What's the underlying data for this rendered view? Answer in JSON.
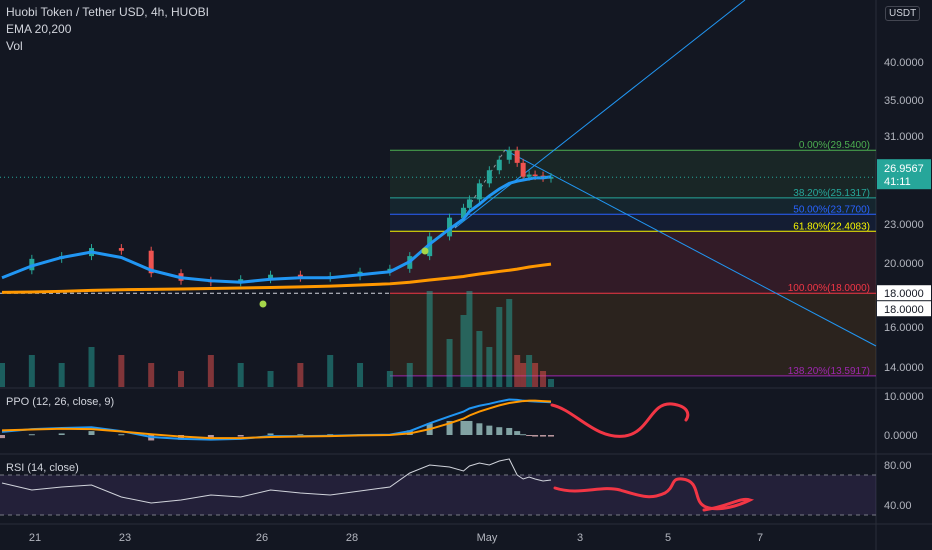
{
  "legend": {
    "title": "Huobi Token / Tether USD, 4h, HUOBI",
    "ema": "EMA 20,200",
    "vol": "Vol"
  },
  "currency_button": "USDT",
  "chart_data": [
    {
      "type": "line",
      "title": "Huobi Token / Tether USD, 4h, HUOBI",
      "series": [
        {
          "name": "EMA 20,200",
          "ohlc_summary": "candlestick price",
          "x": [
            0,
            15,
            30,
            45,
            60,
            75,
            90,
            105,
            120,
            135,
            150,
            165,
            180,
            195,
            205,
            215,
            225,
            232,
            235,
            240,
            245,
            250,
            255,
            259,
            262,
            265,
            268,
            272,
            276
          ],
          "values": [
            19.5,
            20.3,
            20.5,
            21.1,
            20.9,
            19.3,
            18.8,
            18.7,
            18.9,
            19.2,
            19.0,
            19.1,
            19.4,
            19.6,
            20.5,
            22.0,
            23.5,
            24.3,
            25.0,
            26.4,
            27.6,
            28.6,
            29.5,
            28.3,
            27.0,
            27.2,
            27.1,
            26.9,
            26.96
          ]
        }
      ],
      "ema_fast_values": [
        19.0,
        19.8,
        20.4,
        20.8,
        20.4,
        19.5,
        19.0,
        18.8,
        18.7,
        18.9,
        19.0,
        19.0,
        19.2,
        19.4,
        20.1,
        21.4,
        22.6,
        23.4,
        24.0,
        24.6,
        25.3,
        25.9,
        26.4,
        26.6,
        26.7,
        26.8,
        26.9,
        26.9,
        27.0
      ],
      "ema_slow_values": [
        18.05,
        18.08,
        18.12,
        18.18,
        18.22,
        18.24,
        18.27,
        18.3,
        18.33,
        18.36,
        18.4,
        18.45,
        18.52,
        18.6,
        18.7,
        18.85,
        18.98,
        19.08,
        19.15,
        19.25,
        19.33,
        19.42,
        19.5,
        19.58,
        19.65,
        19.72,
        19.78,
        19.85,
        19.92
      ],
      "volume": [
        3,
        4,
        3,
        5,
        4,
        3,
        2,
        4,
        3,
        2,
        3,
        4,
        3,
        2,
        3,
        12,
        6,
        9,
        12,
        7,
        5,
        10,
        11,
        4,
        3,
        4,
        3,
        2,
        1
      ],
      "yaxis_ticks": [
        "40.0000",
        "35.0000",
        "31.0000",
        "23.0000",
        "20.0000",
        "16.0000",
        "14.0000"
      ],
      "price_tags": {
        "last": "26.9567",
        "countdown": "41:11",
        "level_a": "18.0000",
        "level_b": "18.0000"
      },
      "fib_levels": [
        {
          "label": "0.00%(29.5400)",
          "price": 29.54,
          "color": "#4caf50"
        },
        {
          "label": "38.20%(25.1317)",
          "price": 25.1317,
          "color": "#26a69a"
        },
        {
          "label": "50.00%(23.7700)",
          "price": 23.77,
          "color": "#2962ff"
        },
        {
          "label": "61.80%(22.4083)",
          "price": 22.4083,
          "color": "#f7f700"
        },
        {
          "label": "100.00%(18.0000)",
          "price": 18.0,
          "color": "#f23645"
        },
        {
          "label": "138.20%(13.5917)",
          "price": 13.5917,
          "color": "#9c27b0"
        }
      ],
      "xaxis_ticks": [
        "21",
        "23",
        "26",
        "28",
        "May",
        "3",
        "5",
        "7"
      ]
    },
    {
      "type": "line",
      "title": "PPO (12, 26, close, 9)",
      "x": [
        0,
        15,
        30,
        45,
        60,
        75,
        90,
        105,
        120,
        135,
        150,
        165,
        180,
        195,
        205,
        215,
        225,
        232,
        235,
        240,
        245,
        250,
        255,
        259,
        262,
        265,
        268,
        272,
        276
      ],
      "series": [
        {
          "name": "PPO",
          "values": [
            0.8,
            1.5,
            1.8,
            2.0,
            1.0,
            -0.5,
            -1.0,
            -1.2,
            -1.0,
            -0.3,
            -0.3,
            -0.2,
            0.0,
            0.1,
            1.0,
            3.0,
            4.8,
            6.0,
            6.8,
            7.5,
            8.0,
            8.6,
            9.1,
            9.0,
            8.8,
            8.7,
            8.6,
            8.5,
            8.4
          ]
        },
        {
          "name": "Signal",
          "values": [
            1.2,
            1.4,
            1.6,
            1.5,
            0.9,
            0.2,
            -0.4,
            -0.8,
            -0.8,
            -0.5,
            -0.4,
            -0.3,
            -0.1,
            0.0,
            0.4,
            1.5,
            3.0,
            4.2,
            5.0,
            6.0,
            6.8,
            7.6,
            8.2,
            8.5,
            8.7,
            8.8,
            8.8,
            8.7,
            8.6
          ]
        }
      ],
      "yaxis_ticks": [
        "10.0000",
        "0.0000"
      ]
    },
    {
      "type": "line",
      "title": "RSI (14, close)",
      "x": [
        0,
        15,
        30,
        45,
        60,
        75,
        90,
        105,
        120,
        135,
        150,
        165,
        180,
        195,
        205,
        215,
        225,
        232,
        235,
        240,
        245,
        250,
        255,
        259,
        262,
        265,
        268,
        272,
        276
      ],
      "series": [
        {
          "name": "RSI",
          "values": [
            62,
            55,
            58,
            60,
            48,
            42,
            45,
            50,
            48,
            55,
            52,
            50,
            54,
            58,
            72,
            80,
            78,
            74,
            79,
            82,
            80,
            84,
            86,
            70,
            66,
            68,
            66,
            64,
            65
          ]
        }
      ],
      "yaxis_ticks": [
        "80.00",
        "40.00"
      ]
    }
  ],
  "pane_labels": {
    "ppo": "PPO (12, 26, close, 9)",
    "rsi": "RSI (14, close)"
  }
}
